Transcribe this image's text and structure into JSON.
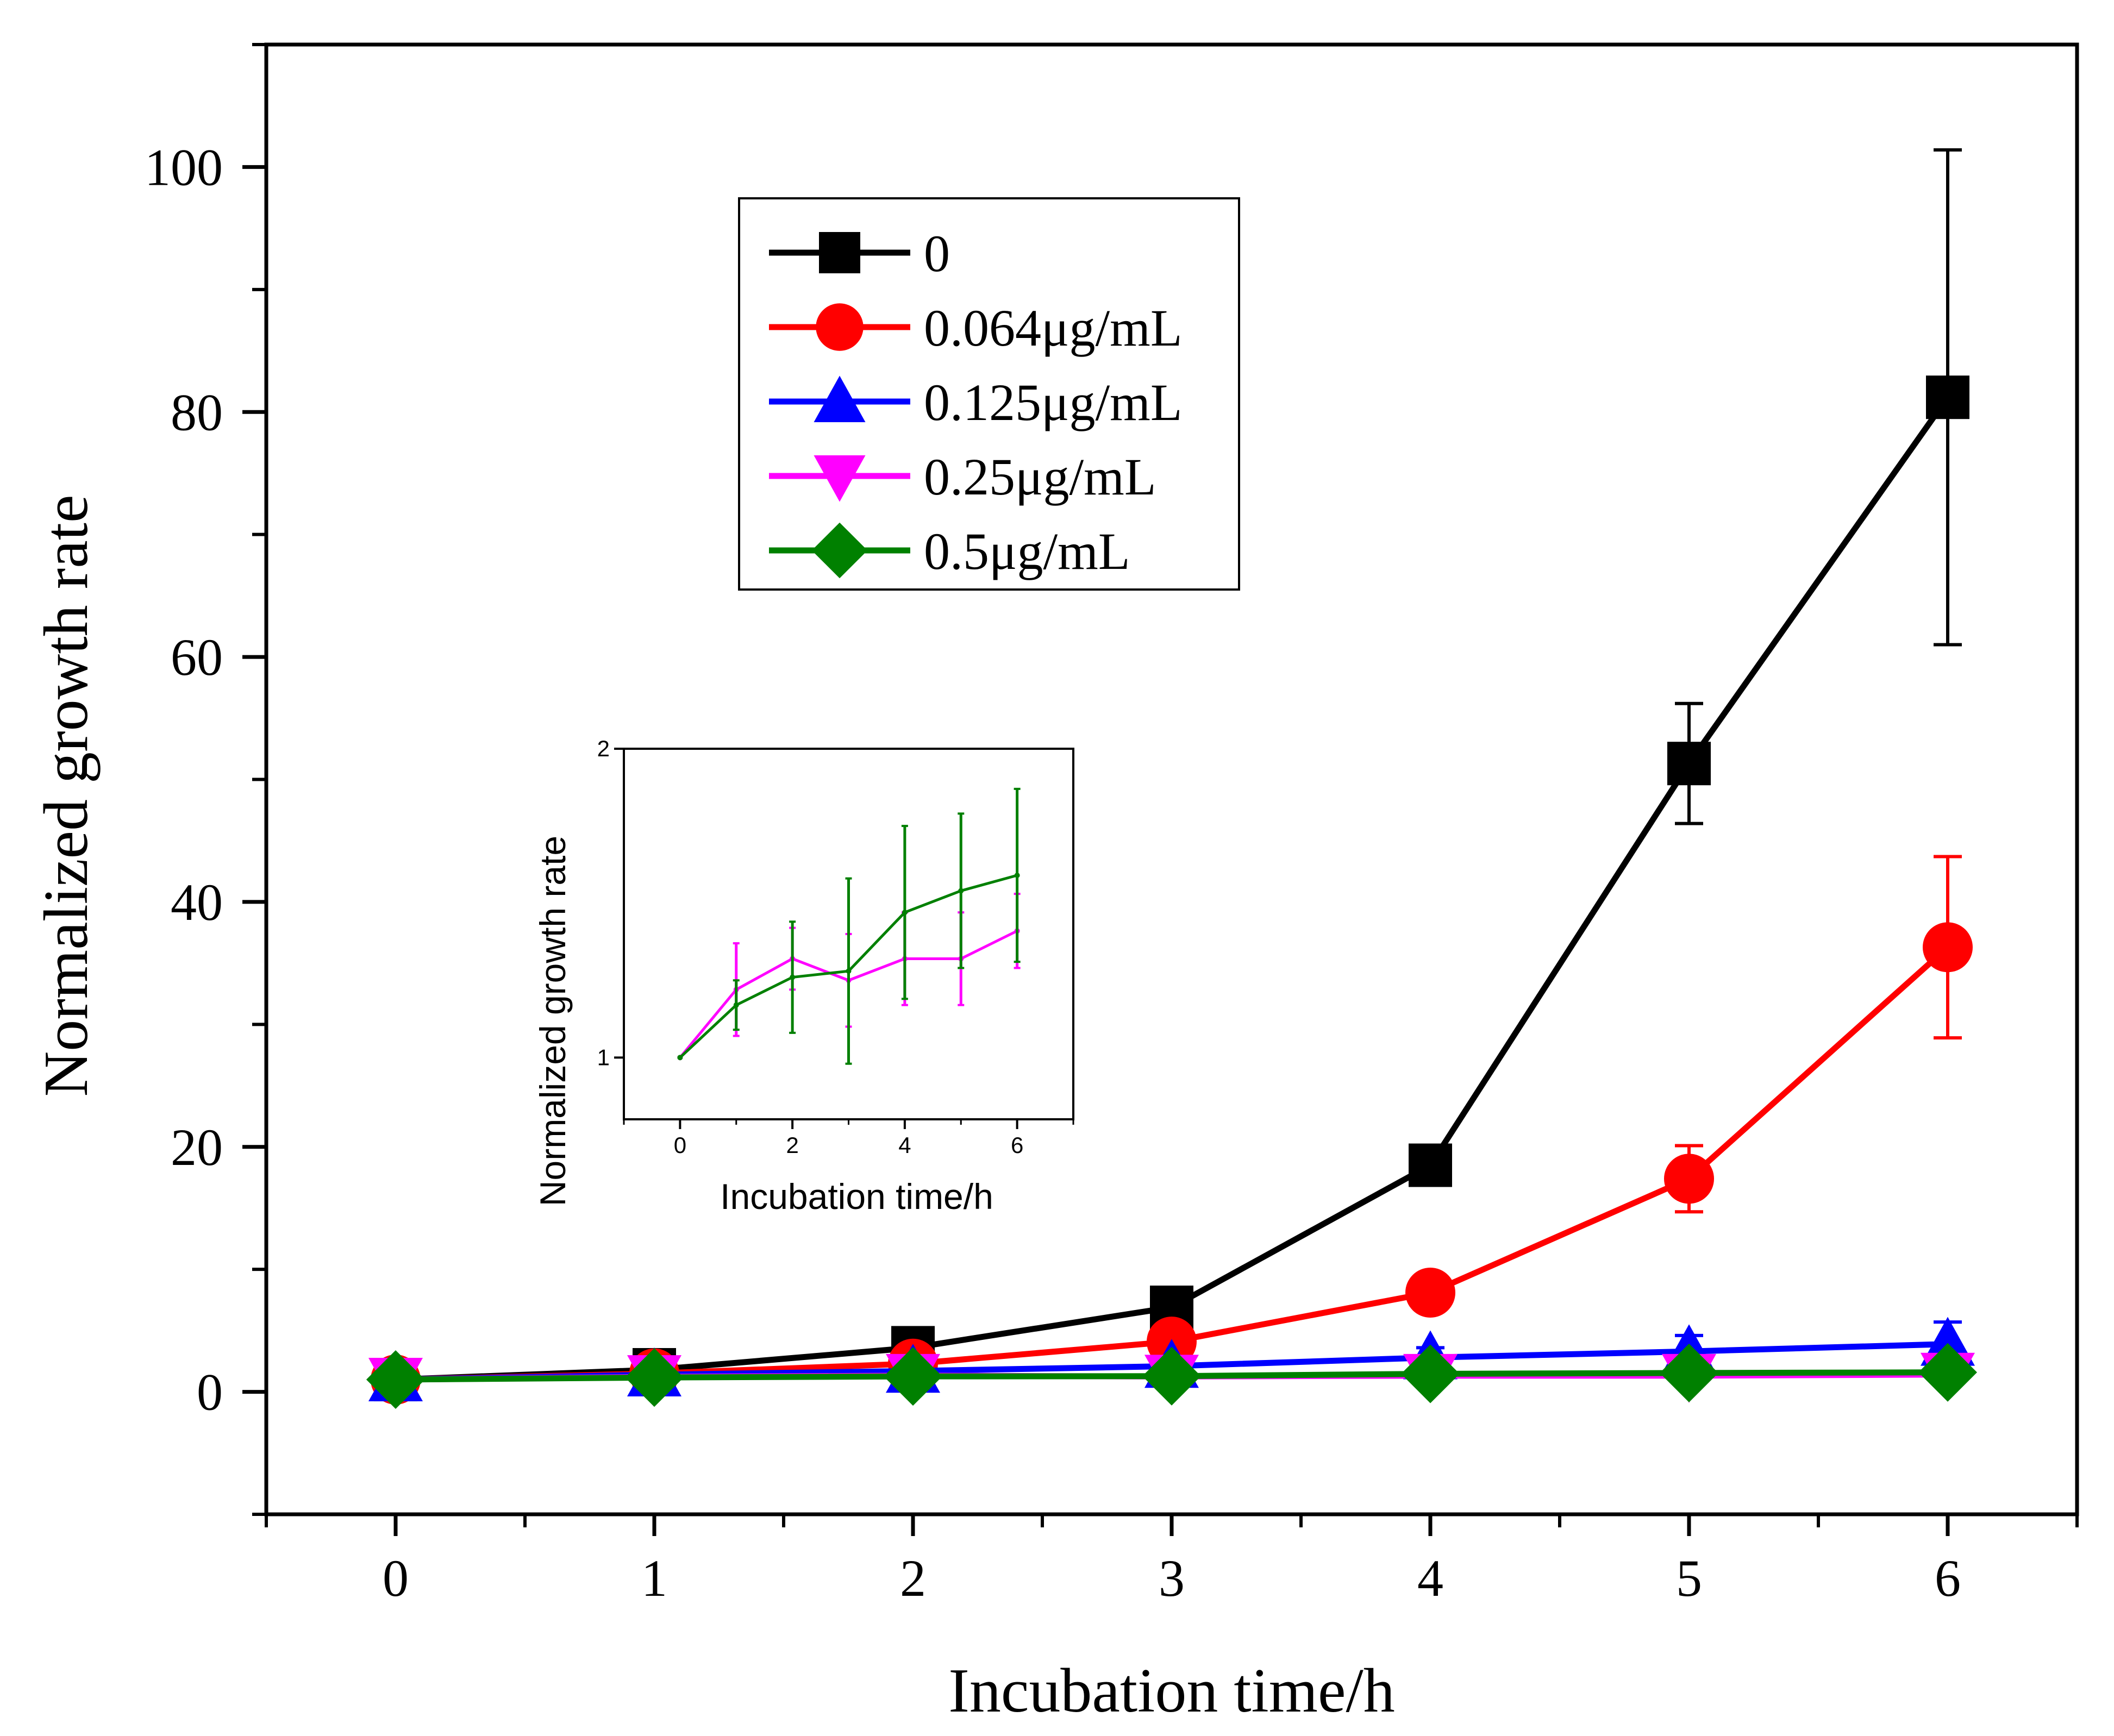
{
  "chart_data": [
    {
      "type": "line",
      "role": "main",
      "xlabel": "Incubation time/h",
      "ylabel": "Normalized growth rate",
      "xlim": [
        -0.5,
        6.5
      ],
      "ylim": [
        -10,
        110
      ],
      "xticks": [
        0,
        1,
        2,
        3,
        4,
        5,
        6
      ],
      "yticks": [
        0,
        20,
        40,
        60,
        80,
        100
      ],
      "xtick_labels": [
        "0",
        "1",
        "2",
        "3",
        "4",
        "5",
        "6"
      ],
      "ytick_labels": [
        "0",
        "20",
        "40",
        "60",
        "80",
        "100"
      ],
      "x": [
        0,
        1,
        2,
        3,
        4,
        5,
        6
      ],
      "legend_position": "top-center",
      "series": [
        {
          "name": "0",
          "color": "#000000",
          "marker": "square",
          "values": [
            1,
            1.8,
            3.6,
            6.9,
            18.5,
            51.3,
            81.2
          ],
          "errors": [
            0.2,
            0.3,
            0.5,
            0.6,
            1.2,
            4.9,
            20.2
          ]
        },
        {
          "name": "0.064μg/mL",
          "color": "#ff0000",
          "marker": "circle",
          "values": [
            1,
            1.5,
            2.3,
            4.1,
            8.1,
            17.4,
            36.3
          ],
          "errors": [
            0.2,
            0.2,
            0.4,
            0.5,
            0.8,
            2.7,
            7.4
          ]
        },
        {
          "name": "0.125μg/mL",
          "color": "#0000ff",
          "marker": "triangle-up",
          "values": [
            1,
            1.4,
            1.7,
            2.1,
            2.8,
            3.3,
            3.9
          ],
          "errors": [
            0.2,
            0.2,
            0.3,
            0.3,
            0.8,
            1.3,
            1.8
          ]
        },
        {
          "name": "0.25μg/mL",
          "color": "#ff00ff",
          "marker": "triangle-down",
          "values": [
            1,
            1.22,
            1.32,
            1.25,
            1.32,
            1.32,
            1.41
          ],
          "errors": [
            0.1,
            0.15,
            0.1,
            0.15,
            0.15,
            0.15,
            0.12
          ]
        },
        {
          "name": "0.5μg/mL",
          "color": "#008000",
          "marker": "diamond",
          "values": [
            1,
            1.17,
            1.26,
            1.28,
            1.47,
            1.54,
            1.59
          ],
          "errors": [
            0.1,
            0.08,
            0.2,
            0.3,
            0.28,
            0.24,
            0.3
          ]
        }
      ]
    },
    {
      "type": "line",
      "role": "inset",
      "xlabel": "Incubation time/h",
      "ylabel": "Normalized growth rate",
      "xlim": [
        -1,
        7
      ],
      "ylim": [
        0.8,
        2
      ],
      "xticks": [
        0,
        2,
        4,
        6
      ],
      "yticks": [
        1,
        2
      ],
      "xtick_labels": [
        "0",
        "2",
        "4",
        "6"
      ],
      "ytick_labels": [
        "1",
        "2"
      ],
      "x": [
        0,
        1,
        2,
        3,
        4,
        5,
        6
      ],
      "series": [
        {
          "name": "0.25μg/mL",
          "color": "#ff00ff",
          "values": [
            1,
            1.22,
            1.32,
            1.25,
            1.32,
            1.32,
            1.41
          ],
          "errors": [
            0,
            0.15,
            0.1,
            0.15,
            0.15,
            0.15,
            0.12
          ]
        },
        {
          "name": "0.5μg/mL",
          "color": "#008000",
          "values": [
            1,
            1.17,
            1.26,
            1.28,
            1.47,
            1.54,
            1.59
          ],
          "errors": [
            0,
            0.08,
            0.18,
            0.3,
            0.28,
            0.25,
            0.28
          ]
        }
      ]
    }
  ]
}
